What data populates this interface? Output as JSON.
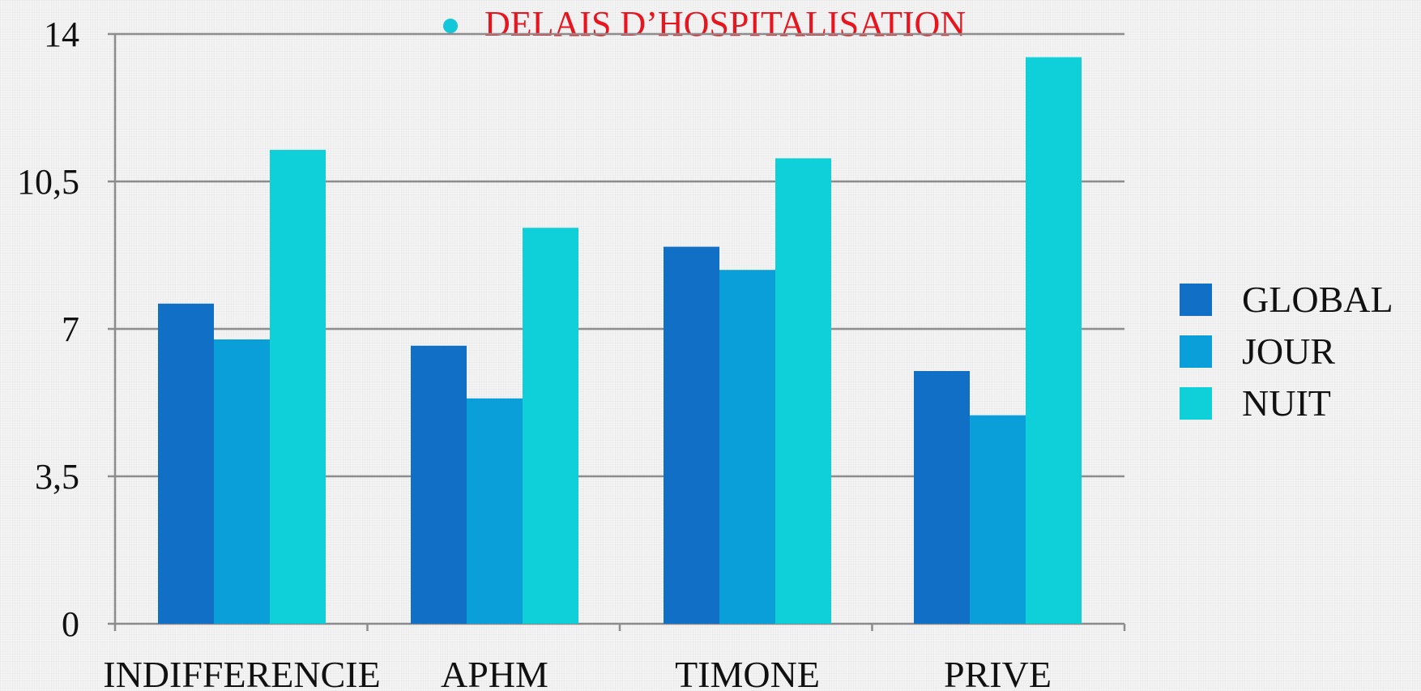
{
  "title": {
    "text": "DELAIS D’HOSPITALISATION",
    "color": "#e8141e",
    "bullet_color": "#12c8d8"
  },
  "chart_data": {
    "type": "bar",
    "title": "DELAIS D’HOSPITALISATION",
    "categories": [
      "INDIFFERENCIE",
      "APHM",
      "TIMONE",
      "PRIVE"
    ],
    "series": [
      {
        "name": "GLOBAL",
        "color": "#1170c6",
        "values": [
          7.6,
          6.6,
          8.95,
          6.0
        ]
      },
      {
        "name": "JOUR",
        "color": "#0a9fd8",
        "values": [
          6.75,
          5.35,
          8.4,
          4.95
        ]
      },
      {
        "name": "NUIT",
        "color": "#0fd0d9",
        "values": [
          11.25,
          9.4,
          11.05,
          13.45
        ]
      }
    ],
    "ylim": [
      0,
      14
    ],
    "yticks": [
      0,
      3.5,
      7,
      10.5,
      14
    ],
    "ytick_labels": [
      "0",
      "3,5",
      "7",
      "10,5",
      "14"
    ],
    "xlabel": "",
    "ylabel": "",
    "grid": true,
    "legend_position": "right"
  }
}
